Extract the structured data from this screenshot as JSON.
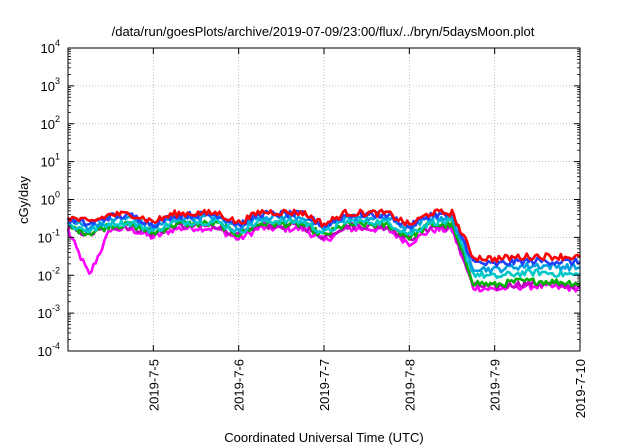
{
  "chart_data": {
    "type": "line",
    "title": "/data/run/goesPlots/archive/2019-07-09/23:00/flux/../bryn/5daysMoon.plot",
    "xlabel": "Coordinated Universal Time (UTC)",
    "ylabel": "cGy/day",
    "yscale": "log",
    "ylim": [
      0.0001,
      10000
    ],
    "xlim": [
      "2019-07-04T00:00",
      "2019-07-10T00:00"
    ],
    "grid": true,
    "legend": "none",
    "y_ticks": [
      {
        "base": "10",
        "exp": "-4",
        "value": 0.0001
      },
      {
        "base": "10",
        "exp": "-3",
        "value": 0.001
      },
      {
        "base": "10",
        "exp": "-2",
        "value": 0.01
      },
      {
        "base": "10",
        "exp": "-1",
        "value": 0.1
      },
      {
        "base": "10",
        "exp": "0",
        "value": 1
      },
      {
        "base": "10",
        "exp": "1",
        "value": 10
      },
      {
        "base": "10",
        "exp": "2",
        "value": 100
      },
      {
        "base": "10",
        "exp": "3",
        "value": 1000
      },
      {
        "base": "10",
        "exp": "4",
        "value": 10000
      }
    ],
    "x_ticks": [
      {
        "label": "2019-7-5",
        "value": "2019-07-05T00:00"
      },
      {
        "label": "2019-7-6",
        "value": "2019-07-06T00:00"
      },
      {
        "label": "2019-7-7",
        "value": "2019-07-07T00:00"
      },
      {
        "label": "2019-7-8",
        "value": "2019-07-08T00:00"
      },
      {
        "label": "2019-7-9",
        "value": "2019-07-09T00:00"
      },
      {
        "label": "2019-7-10",
        "value": "2019-07-10T00:00"
      }
    ],
    "x": [
      "2019-07-04T00:00",
      "2019-07-04T06:00",
      "2019-07-04T12:00",
      "2019-07-04T18:00",
      "2019-07-05T00:00",
      "2019-07-05T06:00",
      "2019-07-05T12:00",
      "2019-07-05T18:00",
      "2019-07-06T00:00",
      "2019-07-06T06:00",
      "2019-07-06T12:00",
      "2019-07-06T18:00",
      "2019-07-07T00:00",
      "2019-07-07T06:00",
      "2019-07-07T12:00",
      "2019-07-07T18:00",
      "2019-07-08T00:00",
      "2019-07-08T06:00",
      "2019-07-08T12:00",
      "2019-07-08T18:00",
      "2019-07-09T00:00",
      "2019-07-09T06:00",
      "2019-07-09T12:00",
      "2019-07-09T18:00",
      "2019-07-10T00:00"
    ],
    "series": [
      {
        "color": "#ff0000",
        "values": [
          0.34,
          0.25,
          0.4,
          0.41,
          0.26,
          0.42,
          0.43,
          0.44,
          0.24,
          0.47,
          0.46,
          0.45,
          0.22,
          0.44,
          0.44,
          0.43,
          0.21,
          0.45,
          0.44,
          0.03,
          0.027,
          0.03,
          0.032,
          0.031,
          0.03
        ]
      },
      {
        "color": "#2040ff",
        "values": [
          0.3,
          0.22,
          0.36,
          0.37,
          0.22,
          0.38,
          0.39,
          0.4,
          0.21,
          0.42,
          0.41,
          0.4,
          0.2,
          0.39,
          0.4,
          0.39,
          0.19,
          0.4,
          0.39,
          0.022,
          0.019,
          0.023,
          0.024,
          0.023,
          0.022
        ]
      },
      {
        "color": "#00a0e0",
        "values": [
          0.27,
          0.19,
          0.31,
          0.32,
          0.19,
          0.33,
          0.34,
          0.35,
          0.18,
          0.36,
          0.35,
          0.35,
          0.17,
          0.34,
          0.34,
          0.33,
          0.16,
          0.34,
          0.33,
          0.016,
          0.014,
          0.017,
          0.018,
          0.017,
          0.016
        ]
      },
      {
        "color": "#00c8c8",
        "values": [
          0.21,
          0.15,
          0.24,
          0.24,
          0.15,
          0.25,
          0.26,
          0.26,
          0.14,
          0.27,
          0.27,
          0.26,
          0.13,
          0.26,
          0.26,
          0.25,
          0.12,
          0.26,
          0.25,
          0.011,
          0.009,
          0.011,
          0.012,
          0.011,
          0.01
        ]
      },
      {
        "color": "#00b000",
        "values": [
          0.19,
          0.13,
          0.21,
          0.21,
          0.13,
          0.22,
          0.23,
          0.23,
          0.12,
          0.23,
          0.23,
          0.22,
          0.11,
          0.22,
          0.22,
          0.21,
          0.1,
          0.22,
          0.21,
          0.0065,
          0.0055,
          0.0068,
          0.007,
          0.0066,
          0.0062
        ]
      },
      {
        "color": "#c000c0",
        "values": [
          0.17,
          0.12,
          0.19,
          0.19,
          0.12,
          0.2,
          0.2,
          0.2,
          0.11,
          0.21,
          0.2,
          0.2,
          0.1,
          0.2,
          0.2,
          0.19,
          0.09,
          0.19,
          0.19,
          0.0055,
          0.0048,
          0.0058,
          0.006,
          0.0056,
          0.0052
        ]
      },
      {
        "color": "#ff00ff",
        "values": [
          0.15,
          0.01,
          0.17,
          0.16,
          0.1,
          0.17,
          0.18,
          0.17,
          0.09,
          0.18,
          0.17,
          0.17,
          0.08,
          0.17,
          0.17,
          0.16,
          0.07,
          0.16,
          0.16,
          0.0048,
          0.0042,
          0.005,
          0.0052,
          0.0048,
          0.0045
        ]
      }
    ]
  }
}
